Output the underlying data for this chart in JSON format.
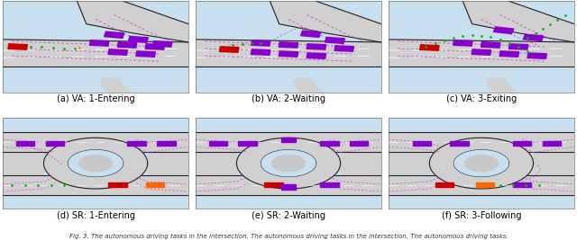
{
  "fig_width": 6.4,
  "fig_height": 2.67,
  "dpi": 100,
  "nrows": 2,
  "ncols": 3,
  "captions": [
    [
      "(a) VA: 1-Entering",
      "(b) VA: 2-Waiting",
      "(c) VA: 3-Exiting"
    ],
    [
      "(d) SR: 1-Entering",
      "(e) SR: 2-Waiting",
      "(f) SR: 3-Following"
    ]
  ],
  "caption_fontsize": 7.0,
  "figure_caption": "Fig. 3. The autonomous driving tasks in the intersection. The autonomous driving tasks in the intersection. The autonomous driving tasks.",
  "figure_caption_fontsize": 5.0,
  "sky_color": "#c8dff0",
  "road_color": "#d0d0d0",
  "road_edge_color": "#222222",
  "car_purple": "#8800cc",
  "car_red": "#cc0000",
  "car_orange": "#ff6600",
  "dot_green": "#00bb00",
  "dot_orange": "#ff8800",
  "dash_purple": "#cc44cc",
  "lane_dash": "#ffffff"
}
